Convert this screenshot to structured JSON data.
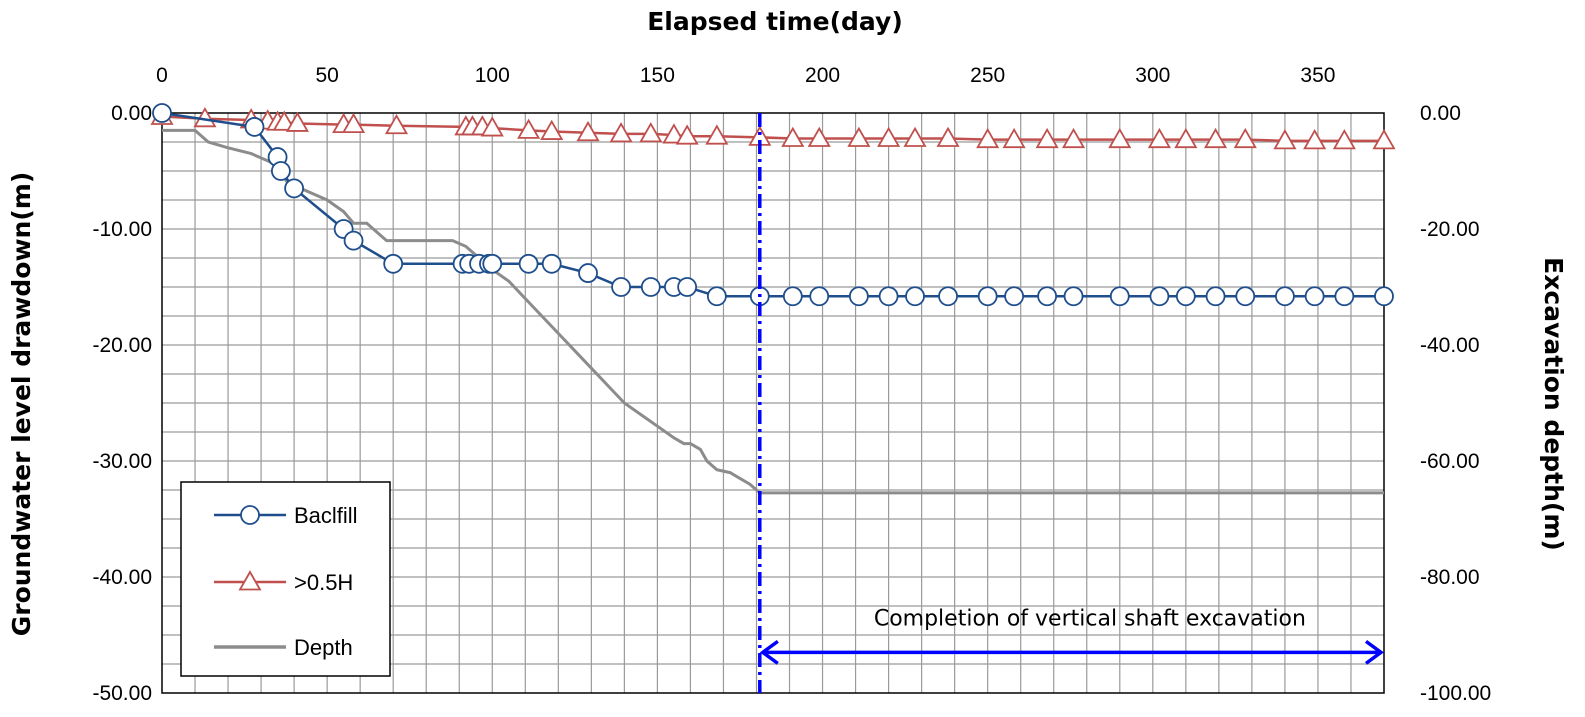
{
  "chart_data": {
    "type": "line",
    "xlabel": "Elapsed time(day)",
    "ylabel": "Groundwater level drawdown(m)",
    "y2label": "Excavation  depth(m)",
    "xlim": [
      0,
      370
    ],
    "ylim": [
      -50,
      0
    ],
    "y2lim": [
      -100,
      0
    ],
    "x_ticks": [
      0,
      50,
      100,
      150,
      200,
      250,
      300,
      350
    ],
    "y_ticks": [
      "0.00",
      "-10.00",
      "-20.00",
      "-30.00",
      "-40.00",
      "-50.00"
    ],
    "y2_ticks": [
      "0.00",
      "-20.00",
      "-40.00",
      "-60.00",
      "-80.00",
      "-100.00"
    ],
    "grid": true,
    "legend_position": "bottom-left",
    "series": [
      {
        "name": "Baclfill",
        "axis": "left",
        "marker": "circle",
        "color": "#1F4E8C",
        "x": [
          0,
          28,
          35,
          36,
          40,
          55,
          58,
          70,
          91,
          93,
          96,
          99,
          100,
          111,
          118,
          129,
          139,
          148,
          155,
          159,
          168,
          181,
          191,
          199,
          211,
          220,
          228,
          238,
          250,
          258,
          268,
          276,
          290,
          302,
          310,
          319,
          328,
          340,
          349,
          358,
          370
        ],
        "y": [
          0,
          -1.2,
          -3.8,
          -5.0,
          -6.5,
          -10.0,
          -11.0,
          -13.0,
          -13.0,
          -13.0,
          -13.0,
          -13.0,
          -13.0,
          -13.0,
          -13.0,
          -13.8,
          -15.0,
          -15.0,
          -15.0,
          -15.0,
          -15.8,
          -15.8,
          -15.8,
          -15.8,
          -15.8,
          -15.8,
          -15.8,
          -15.8,
          -15.8,
          -15.8,
          -15.8,
          -15.8,
          -15.8,
          -15.8,
          -15.8,
          -15.8,
          -15.8,
          -15.8,
          -15.8,
          -15.8,
          -15.8
        ]
      },
      {
        "name": ">0.5H",
        "axis": "left",
        "marker": "triangle",
        "color": "#C0504D",
        "x": [
          0,
          13,
          27,
          32,
          35,
          37,
          41,
          55,
          58,
          71,
          92,
          94,
          97,
          100,
          111,
          118,
          129,
          139,
          148,
          155,
          159,
          168,
          181,
          191,
          199,
          211,
          220,
          228,
          238,
          250,
          258,
          268,
          276,
          290,
          302,
          310,
          319,
          328,
          340,
          349,
          358,
          370
        ],
        "y": [
          -0.3,
          -0.5,
          -0.6,
          -0.7,
          -0.8,
          -0.8,
          -0.9,
          -1.0,
          -1.0,
          -1.1,
          -1.2,
          -1.2,
          -1.2,
          -1.3,
          -1.5,
          -1.6,
          -1.7,
          -1.8,
          -1.8,
          -1.9,
          -2.0,
          -2.0,
          -2.1,
          -2.2,
          -2.2,
          -2.2,
          -2.2,
          -2.2,
          -2.2,
          -2.3,
          -2.3,
          -2.3,
          -2.3,
          -2.3,
          -2.3,
          -2.3,
          -2.3,
          -2.3,
          -2.4,
          -2.4,
          -2.4,
          -2.4
        ]
      },
      {
        "name": "Depth",
        "axis": "right",
        "marker": "none",
        "color": "#8C8C8C",
        "x": [
          0,
          10,
          14,
          20,
          27,
          31,
          33,
          35,
          38,
          42,
          50,
          55,
          58,
          62,
          68,
          72,
          80,
          88,
          92,
          96,
          100,
          105,
          110,
          115,
          120,
          125,
          130,
          135,
          140,
          145,
          150,
          155,
          158,
          160,
          163,
          165,
          168,
          172,
          175,
          178,
          181,
          200,
          250,
          300,
          370
        ],
        "y": [
          -3.0,
          -3.0,
          -5.0,
          -6.0,
          -7.0,
          -8.0,
          -8.5,
          -9.5,
          -12.0,
          -13.0,
          -15.0,
          -17.0,
          -19.0,
          -19.0,
          -22.0,
          -22.0,
          -22.0,
          -22.0,
          -23.0,
          -25.0,
          -27.0,
          -29.0,
          -32.0,
          -35.0,
          -38.0,
          -41.0,
          -44.0,
          -47.0,
          -50.0,
          -52.0,
          -54.0,
          -56.0,
          -57.0,
          -57.0,
          -58.0,
          -60.0,
          -61.5,
          -62.0,
          -63.0,
          -64.0,
          -65.5,
          -65.5,
          -65.5,
          -65.5,
          -65.5
        ]
      }
    ],
    "vline": {
      "x": 181,
      "color": "#0000FF"
    },
    "annotation": {
      "text": "Completion of vertical shaft excavation",
      "arrow_from_x": 181,
      "arrow_to_x": 370,
      "arrow_y": -46.5,
      "text_y": -43.5,
      "color": "#0000FF"
    }
  }
}
